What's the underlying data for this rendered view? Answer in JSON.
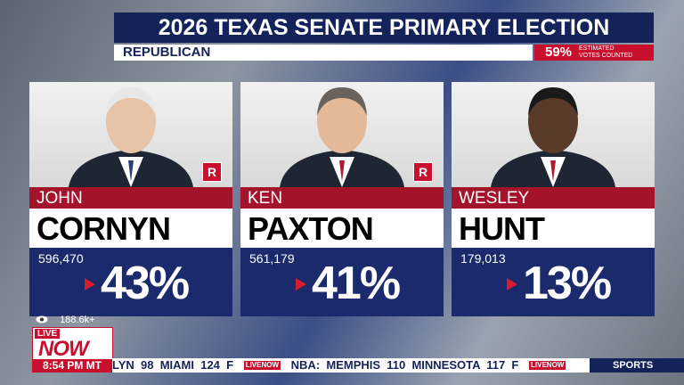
{
  "header": {
    "title": "2026 TEXAS SENATE PRIMARY ELECTION",
    "party": "REPUBLICAN",
    "reporting": {
      "percent": "59%",
      "label_line1": "ESTIMATED",
      "label_line2": "VOTES COUNTED"
    }
  },
  "candidates": [
    {
      "first": "JOHN",
      "last": "CORNYN",
      "votes": "596,470",
      "percent": "43%",
      "badge": "R"
    },
    {
      "first": "KEN",
      "last": "PAXTON",
      "votes": "561,179",
      "percent": "41%",
      "badge": "R"
    },
    {
      "first": "WESLEY",
      "last": "HUNT",
      "votes": "179,013",
      "percent": "13%"
    }
  ],
  "footer": {
    "viewers": "188.6k+",
    "logo_top": "LIVE",
    "logo_bottom": "NOW",
    "time": "8:54 PM MT",
    "ticker": [
      "LYN  98  MIAMI  124  F",
      "NBA:  MEMPHIS  110  MINNESOTA  117  F"
    ],
    "ticker_logo": "LIVENOW",
    "section": "SPORTS"
  }
}
